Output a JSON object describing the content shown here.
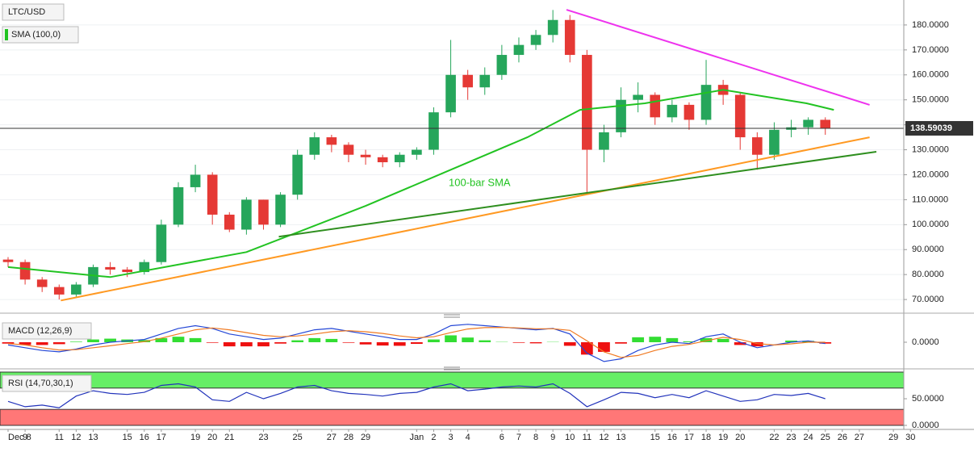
{
  "chart_data": [
    {
      "type": "candlestick",
      "series_name": "LTC/USD",
      "indicator_name": "SMA (100,0)",
      "annotation": "100-bar SMA",
      "xlim": [
        -0.474,
        52.61
      ],
      "ylim": [
        65.5,
        190
      ],
      "yticks": [
        {
          "value": 180,
          "label": "180.0000"
        },
        {
          "value": 170,
          "label": "170.0000"
        },
        {
          "value": 160,
          "label": "160.0000"
        },
        {
          "value": 150,
          "label": "150.0000"
        },
        {
          "value": 140,
          "label": "140.0000"
        },
        {
          "value": 130,
          "label": "130.0000"
        },
        {
          "value": 120,
          "label": "120.0000"
        },
        {
          "value": 110,
          "label": "110.0000"
        },
        {
          "value": 100,
          "label": "100.0000"
        },
        {
          "value": 90,
          "label": "90.0000"
        },
        {
          "value": 80,
          "label": "80.0000"
        },
        {
          "value": 70,
          "label": "70.0000"
        }
      ],
      "grid": true,
      "up_color": "#26a65b",
      "down_color": "#e53935",
      "x": [
        0,
        1,
        2,
        3,
        4,
        5,
        6,
        7,
        8,
        9,
        10,
        11,
        12,
        13,
        14,
        15,
        16,
        17,
        18,
        19,
        20,
        21,
        22,
        23,
        24,
        25,
        26,
        27,
        28,
        29,
        30,
        31,
        32,
        33,
        34,
        35,
        36,
        37,
        38,
        39,
        40,
        41,
        42,
        43,
        44,
        45,
        46,
        47,
        48
      ],
      "open": [
        86,
        85,
        78,
        75,
        72,
        76,
        83,
        82,
        81,
        85,
        100,
        115,
        120,
        104,
        98,
        110,
        100,
        112,
        128,
        135,
        132,
        128,
        127,
        125,
        128,
        130,
        145,
        160,
        155,
        160,
        168,
        172,
        176,
        182,
        168,
        130,
        137,
        150,
        152,
        143,
        148,
        142,
        156,
        152,
        135,
        128,
        138,
        139,
        142
      ],
      "high": [
        87,
        86,
        79,
        76,
        77,
        84,
        85,
        83,
        86,
        102,
        117,
        124,
        121,
        105,
        111,
        110,
        113,
        130,
        137,
        136,
        133,
        130,
        128,
        129,
        131,
        147,
        174,
        162,
        163,
        172,
        175,
        178,
        186,
        184,
        170,
        140,
        155,
        157,
        153,
        150,
        149,
        166,
        158,
        153,
        137,
        141,
        142,
        143,
        143
      ],
      "low": [
        83,
        76,
        73,
        70,
        71,
        75,
        80,
        79,
        80,
        84,
        99,
        113,
        100,
        97,
        96,
        98,
        99,
        110,
        126,
        129,
        125,
        124,
        123,
        123,
        126,
        128,
        143,
        150,
        152,
        158,
        165,
        170,
        173,
        165,
        112,
        125,
        135,
        145,
        140,
        141,
        138,
        140,
        148,
        130,
        122,
        126,
        135,
        136,
        136
      ],
      "close": [
        85,
        78,
        75,
        72,
        76,
        83,
        82,
        81,
        85,
        100,
        115,
        120,
        104,
        98,
        110,
        100,
        112,
        128,
        135,
        132,
        128,
        127,
        125,
        128,
        130,
        145,
        160,
        155,
        160,
        168,
        172,
        176,
        182,
        168,
        130,
        137,
        150,
        152,
        143,
        148,
        142,
        156,
        152,
        135,
        128,
        138,
        139,
        142,
        138.59
      ],
      "sma": {
        "color": "#22c322",
        "x": [
          0,
          6,
          14,
          21,
          26,
          30.5,
          33.6,
          37.4,
          42,
          46.9,
          48.5
        ],
        "values": [
          83,
          79,
          89,
          107.5,
          122,
          135,
          146,
          148.6,
          154,
          148.6,
          146
        ]
      },
      "trendlines": [
        {
          "color": "#ee33ee",
          "x": [
            32.8,
            50.6
          ],
          "values": [
            186.1,
            148
          ]
        },
        {
          "color": "#ff9922",
          "x": [
            3.1,
            50.6
          ],
          "values": [
            69.6,
            135
          ]
        },
        {
          "color": "#2f8f1f",
          "x": [
            15.9,
            51.0
          ],
          "values": [
            95.2,
            129.2
          ]
        }
      ],
      "last_price": 138.59039
    },
    {
      "type": "macd",
      "title": "MACD (12,26,9)",
      "xlim": [
        -0.474,
        52.61
      ],
      "ylim": [
        -8.5,
        8.5
      ],
      "yticks": [
        {
          "value": 0,
          "label": "0.0000"
        }
      ],
      "x": [
        0,
        1,
        2,
        3,
        4,
        5,
        6,
        7,
        8,
        9,
        10,
        11,
        12,
        13,
        14,
        15,
        16,
        17,
        18,
        19,
        20,
        21,
        22,
        23,
        24,
        25,
        26,
        27,
        28,
        29,
        30,
        31,
        32,
        33,
        34,
        35,
        36,
        37,
        38,
        39,
        40,
        41,
        42,
        43,
        44,
        45,
        46,
        47,
        48
      ],
      "series": [
        {
          "color": "#2447d6",
          "values": [
            -1,
            -2,
            -3,
            -3.5,
            -2.5,
            -1,
            0,
            0.5,
            1,
            3,
            5,
            6,
            5,
            3,
            2,
            1,
            1.5,
            3,
            4.5,
            5,
            4,
            3,
            2,
            1,
            1,
            3,
            6,
            6.5,
            6,
            5.5,
            5,
            4.5,
            5,
            3,
            -4,
            -7,
            -6,
            -3,
            -1,
            0,
            -0.5,
            2,
            3,
            0,
            -2,
            -1,
            0,
            0.5,
            -0.5
          ]
        },
        {
          "color": "#f07a22",
          "values": [
            -0.5,
            -1,
            -2,
            -2.8,
            -2.7,
            -2,
            -1.3,
            -0.5,
            0.2,
            1.5,
            3,
            4.5,
            5.2,
            4.5,
            3.5,
            2.5,
            2,
            2.3,
            3,
            3.8,
            4.2,
            3.8,
            3.2,
            2.3,
            1.6,
            2,
            3.5,
            4.8,
            5.3,
            5.4,
            5.2,
            4.9,
            4.9,
            4.3,
            0.5,
            -3.5,
            -5.5,
            -4.8,
            -3,
            -1.5,
            -0.8,
            0.5,
            1.8,
            1,
            -0.5,
            -1,
            -0.6,
            0,
            0
          ]
        }
      ],
      "histogram": {
        "up_color": "#33dd33",
        "down_color": "#ee1111",
        "values": [
          -0.5,
          -1,
          -1,
          -0.7,
          0.2,
          1,
          1.3,
          1,
          0.8,
          1.5,
          2,
          1.5,
          -0.2,
          -1.5,
          -1.5,
          -1.5,
          -0.5,
          0.7,
          1.5,
          1.2,
          -0.2,
          -0.8,
          -1.2,
          -1.3,
          -0.6,
          1,
          2.5,
          1.7,
          0.7,
          0.1,
          -0.2,
          -0.4,
          0.1,
          -1.3,
          -4.5,
          -3.5,
          -0.5,
          1.8,
          2,
          1.5,
          0.3,
          1.5,
          1.2,
          -1,
          -1.5,
          0,
          0.6,
          0.5,
          -0.5
        ]
      }
    },
    {
      "type": "rsi",
      "title": "RSI (14,70,30,1)",
      "xlim": [
        -0.474,
        52.61
      ],
      "ylim": [
        0,
        100
      ],
      "yticks": [
        {
          "value": 50,
          "label": "50.0000"
        },
        {
          "value": 0,
          "label": "0.0000"
        }
      ],
      "overbought": 70,
      "oversold": 30,
      "overbought_color": "#66ee66",
      "oversold_color": "#ff7777",
      "color": "#2233bb",
      "x": [
        0,
        1,
        2,
        3,
        4,
        5,
        6,
        7,
        8,
        9,
        10,
        11,
        12,
        13,
        14,
        15,
        16,
        17,
        18,
        19,
        20,
        21,
        22,
        23,
        24,
        25,
        26,
        27,
        28,
        29,
        30,
        31,
        32,
        33,
        34,
        35,
        36,
        37,
        38,
        39,
        40,
        41,
        42,
        43,
        44,
        45,
        46,
        47,
        48
      ],
      "values": [
        45,
        35,
        38,
        33,
        55,
        65,
        60,
        58,
        62,
        75,
        78,
        72,
        48,
        45,
        62,
        50,
        60,
        72,
        75,
        65,
        60,
        58,
        55,
        60,
        62,
        72,
        78,
        65,
        68,
        72,
        74,
        72,
        78,
        60,
        35,
        48,
        62,
        60,
        52,
        58,
        52,
        65,
        55,
        45,
        48,
        58,
        56,
        60,
        50
      ],
      "xticks": [
        {
          "value": 0,
          "label": "Dec 8"
        },
        {
          "value": 1,
          "label": "9"
        },
        {
          "value": 3,
          "label": "11"
        },
        {
          "value": 4,
          "label": "12"
        },
        {
          "value": 5,
          "label": "13"
        },
        {
          "value": 7,
          "label": "15"
        },
        {
          "value": 8,
          "label": "16"
        },
        {
          "value": 9,
          "label": "17"
        },
        {
          "value": 11,
          "label": "19"
        },
        {
          "value": 12,
          "label": "20"
        },
        {
          "value": 13,
          "label": "21"
        },
        {
          "value": 15,
          "label": "23"
        },
        {
          "value": 17,
          "label": "25"
        },
        {
          "value": 19,
          "label": "27"
        },
        {
          "value": 20,
          "label": "28"
        },
        {
          "value": 21,
          "label": "29"
        },
        {
          "value": 24,
          "label": "Jan"
        },
        {
          "value": 25,
          "label": "2"
        },
        {
          "value": 26,
          "label": "3"
        },
        {
          "value": 27,
          "label": "4"
        },
        {
          "value": 29,
          "label": "6"
        },
        {
          "value": 30,
          "label": "7"
        },
        {
          "value": 31,
          "label": "8"
        },
        {
          "value": 32,
          "label": "9"
        },
        {
          "value": 33,
          "label": "10"
        },
        {
          "value": 34,
          "label": "11"
        },
        {
          "value": 35,
          "label": "12"
        },
        {
          "value": 36,
          "label": "13"
        },
        {
          "value": 38,
          "label": "15"
        },
        {
          "value": 39,
          "label": "16"
        },
        {
          "value": 40,
          "label": "17"
        },
        {
          "value": 41,
          "label": "18"
        },
        {
          "value": 42,
          "label": "19"
        },
        {
          "value": 43,
          "label": "20"
        },
        {
          "value": 45,
          "label": "22"
        },
        {
          "value": 46,
          "label": "23"
        },
        {
          "value": 47,
          "label": "24"
        },
        {
          "value": 48,
          "label": "25"
        },
        {
          "value": 49,
          "label": "26"
        },
        {
          "value": 50,
          "label": "27"
        },
        {
          "value": 52,
          "label": "29"
        },
        {
          "value": 53,
          "label": "30"
        }
      ]
    }
  ]
}
